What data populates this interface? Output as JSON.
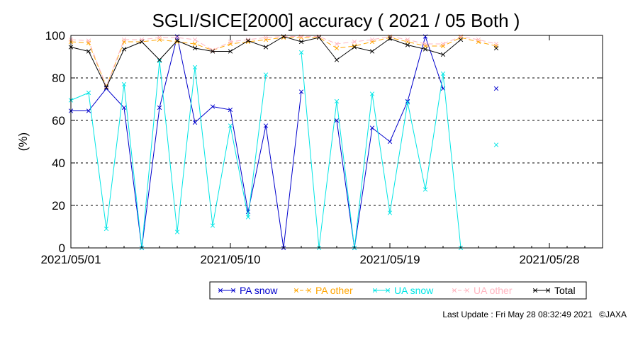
{
  "chart_data": {
    "type": "line",
    "title": "SGLI/SICE[2000] accuracy ( 2021 / 05 Both )",
    "ylabel": "(%)",
    "xlabel": "",
    "ylim": [
      0,
      100
    ],
    "yticks": [
      "0",
      "20",
      "40",
      "60",
      "80",
      "100"
    ],
    "xlim": [
      "2021/05/01",
      "2021/05/31"
    ],
    "xticks": [
      "2021/05/01",
      "2021/05/10",
      "2021/05/19",
      "2021/05/28"
    ],
    "grid": "horizontal dashed",
    "legend_placement": "bottom-right",
    "x": [
      "2021/05/01",
      "2021/05/02",
      "2021/05/03",
      "2021/05/04",
      "2021/05/05",
      "2021/05/06",
      "2021/05/07",
      "2021/05/08",
      "2021/05/09",
      "2021/05/10",
      "2021/05/11",
      "2021/05/12",
      "2021/05/13",
      "2021/05/14",
      "2021/05/15",
      "2021/05/16",
      "2021/05/17",
      "2021/05/18",
      "2021/05/19",
      "2021/05/20",
      "2021/05/21",
      "2021/05/22",
      "2021/05/23",
      "2021/05/24",
      "2021/05/25"
    ],
    "series": [
      {
        "name": "PA snow",
        "color": "#0000cc",
        "values": [
          64.5,
          64.5,
          75,
          66,
          0,
          66,
          99.5,
          59,
          66.5,
          65,
          17,
          57.5,
          0,
          73.5,
          null,
          60,
          0,
          56.5,
          50,
          69,
          99.5,
          75,
          null,
          null,
          75
        ]
      },
      {
        "name": "PA other",
        "color": "#ffa500",
        "values": [
          97,
          96.5,
          76,
          97,
          97,
          98,
          97,
          96,
          93,
          96,
          97,
          98,
          99,
          99,
          99,
          94,
          95,
          97,
          99,
          97,
          95,
          95,
          99,
          97,
          95
        ]
      },
      {
        "name": "UA snow",
        "color": "#00e5e5",
        "values": [
          69.5,
          73,
          9,
          77,
          0,
          88,
          7.5,
          85,
          10.5,
          57.5,
          14.5,
          81.5,
          null,
          92,
          0,
          69,
          0,
          72.5,
          16.5,
          68.5,
          27.5,
          82,
          0,
          null,
          48.5
        ]
      },
      {
        "name": "UA other",
        "color": "#ffb6c1",
        "values": [
          98,
          97.5,
          76,
          98,
          98,
          99,
          99,
          98,
          93,
          97,
          98,
          99,
          99.5,
          99.5,
          99.5,
          96,
          97,
          98,
          99.5,
          98,
          96,
          96,
          99.5,
          98,
          96
        ]
      },
      {
        "name": "Total",
        "color": "#000000",
        "values": [
          94.5,
          92.5,
          75.5,
          93.5,
          97,
          88.5,
          97.5,
          94,
          92.5,
          92.5,
          97.5,
          94.5,
          99.5,
          97,
          99,
          88.5,
          94.5,
          92.5,
          98.5,
          95.5,
          93.5,
          91,
          98,
          null,
          94
        ]
      }
    ]
  },
  "footer": {
    "last_update": "Last Update : Fri May 28 08:32:49 2021",
    "copyright": "©JAXA"
  }
}
